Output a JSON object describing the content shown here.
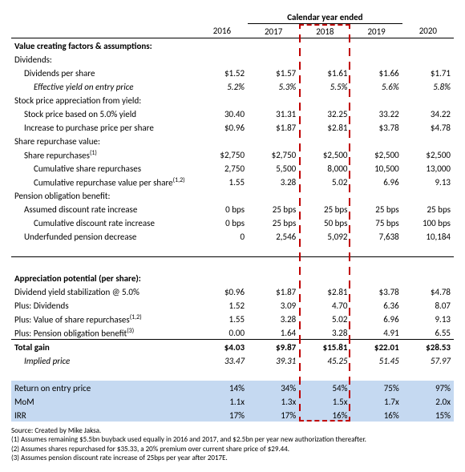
{
  "header": {
    "super": "Calendar year ended",
    "years": [
      "2016",
      "2017",
      "2018",
      "2019",
      "2020"
    ]
  },
  "highlight_column_index": 2,
  "colors": {
    "highlight_border": "#c00000",
    "shade_bg": "#c5d9f1",
    "text": "#000000",
    "background": "#ffffff"
  },
  "sections": [
    {
      "title": "Value creating factors & assumptions:",
      "groups": [
        {
          "label": "Dividends:",
          "rows": [
            {
              "label": "Dividends per share",
              "indent": 1,
              "values": [
                "$1.52",
                "$1.57",
                "$1.61",
                "$1.66",
                "$1.71"
              ]
            },
            {
              "label": "Effective yield on entry price",
              "indent": 2,
              "italic": true,
              "values": [
                "5.2%",
                "5.3%",
                "5.5%",
                "5.6%",
                "5.8%"
              ]
            }
          ]
        },
        {
          "label": "Stock price appreciation from yield:",
          "rows": [
            {
              "label": "Stock price based on 5.0% yield",
              "indent": 1,
              "values": [
                "30.40",
                "31.31",
                "32.25",
                "33.22",
                "34.22"
              ]
            },
            {
              "label": "Increase to purchase price per share",
              "indent": 1,
              "values": [
                "$0.96",
                "$1.87",
                "$2.81",
                "$3.78",
                "$4.78"
              ]
            }
          ]
        },
        {
          "label": "Share repurchase value:",
          "rows": [
            {
              "label": "Share repurchases",
              "sup": "(1)",
              "indent": 1,
              "values": [
                "$2,750",
                "$2,750",
                "$2,500",
                "$2,500",
                "$2,500"
              ]
            },
            {
              "label": "Cumulative share repurchases",
              "indent": 2,
              "values": [
                "2,750",
                "5,500",
                "8,000",
                "10,500",
                "13,000"
              ]
            },
            {
              "label": "Cumulative repurchase value per share",
              "sup": "(1,2)",
              "indent": 2,
              "values": [
                "1.55",
                "3.28",
                "5.02",
                "6.96",
                "9.13"
              ]
            }
          ]
        },
        {
          "label": "Pension obligation benefit:",
          "rows": [
            {
              "label": "Assumed discount rate increase",
              "indent": 1,
              "values": [
                "0 bps",
                "25 bps",
                "25 bps",
                "25 bps",
                "25 bps"
              ]
            },
            {
              "label": "Cumulative discount rate increase",
              "indent": 2,
              "values": [
                "0 bps",
                "25 bps",
                "50 bps",
                "75 bps",
                "100 bps"
              ]
            },
            {
              "label": "Underfunded pension decrease",
              "indent": 1,
              "values": [
                "0",
                "2,546",
                "5,092",
                "7,638",
                "10,184"
              ]
            }
          ]
        }
      ]
    },
    {
      "title": "Appreciation potential (per share):",
      "rows": [
        {
          "label": "Dividend yield stabilization @ 5.0%",
          "values": [
            "$0.96",
            "$1.87",
            "$2.81",
            "$3.78",
            "$4.78"
          ]
        },
        {
          "label": "Plus: Dividends",
          "values": [
            "1.52",
            "3.09",
            "4.70",
            "6.36",
            "8.07"
          ]
        },
        {
          "label": "Plus: Value of share repurchases",
          "sup": "(1,2)",
          "values": [
            "1.55",
            "3.28",
            "5.02",
            "6.96",
            "9.13"
          ]
        },
        {
          "label": "Plus: Pension obligation benefit",
          "sup": "(3)",
          "values": [
            "0.00",
            "1.64",
            "3.28",
            "4.91",
            "6.55"
          ]
        }
      ],
      "totals": [
        {
          "label": "Total gain",
          "bold": true,
          "values": [
            "$4.03",
            "$9.87",
            "$15.81",
            "$22.01",
            "$28.53"
          ]
        },
        {
          "label": "Implied price",
          "italic": true,
          "indent": 1,
          "values": [
            "33.47",
            "39.31",
            "45.25",
            "51.45",
            "57.97"
          ]
        }
      ],
      "returns": [
        {
          "label": "Return on entry price",
          "values": [
            "14%",
            "34%",
            "54%",
            "75%",
            "97%"
          ]
        },
        {
          "label": "MoM",
          "values": [
            "1.1x",
            "1.3x",
            "1.5x",
            "1.7x",
            "2.0x"
          ]
        },
        {
          "label": "IRR",
          "values": [
            "17%",
            "17%",
            "16%",
            "16%",
            "15%"
          ]
        }
      ]
    }
  ],
  "footnotes": {
    "source": "Source: Created by Mike Jaksa.",
    "notes": [
      "(1) Assumes remaining $5.5bn buyback used equally in 2016 and 2017, and $2.5bn per year new authorization thereafter.",
      "(2) Assumes shares repurchased for $35.33, a 20% premium over current share price of $29.44.",
      "(3) Assumes pension discount rate increase of 25bps per year after 2017E."
    ]
  }
}
